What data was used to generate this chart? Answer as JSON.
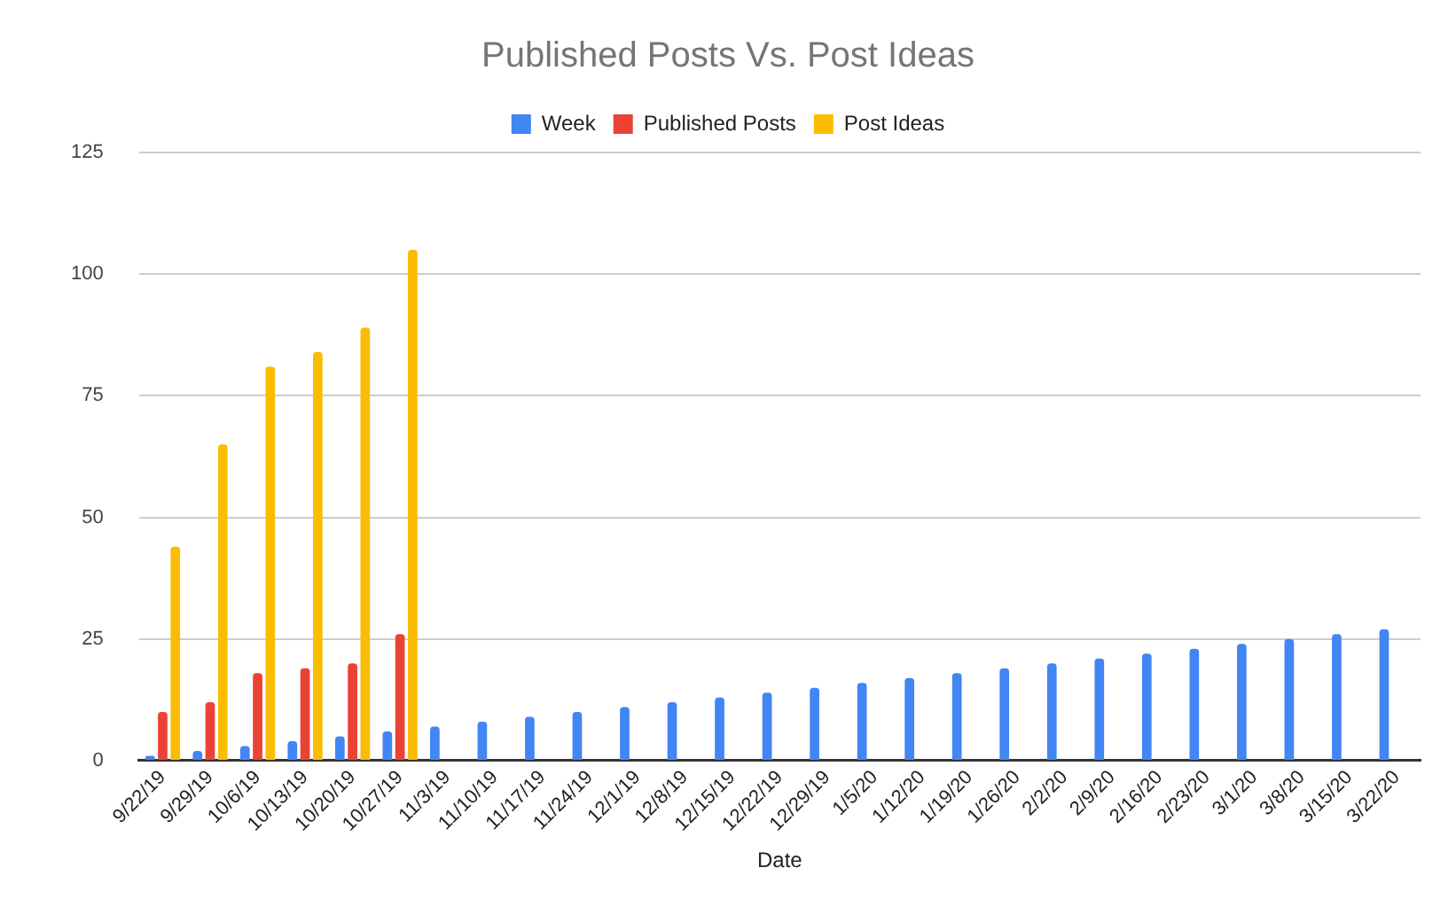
{
  "chart_data": {
    "type": "bar",
    "title": "Published Posts Vs. Post Ideas",
    "xlabel": "Date",
    "categories": [
      "9/22/19",
      "9/29/19",
      "10/6/19",
      "10/13/19",
      "10/20/19",
      "10/27/19",
      "11/3/19",
      "11/10/19",
      "11/17/19",
      "11/24/19",
      "12/1/19",
      "12/8/19",
      "12/15/19",
      "12/22/19",
      "12/29/19",
      "1/5/20",
      "1/12/20",
      "1/19/20",
      "1/26/20",
      "2/2/20",
      "2/9/20",
      "2/16/20",
      "2/23/20",
      "3/1/20",
      "3/8/20",
      "3/15/20",
      "3/22/20"
    ],
    "series": [
      {
        "name": "Week",
        "color": "#4285f4",
        "values": [
          1,
          2,
          3,
          4,
          5,
          6,
          7,
          8,
          9,
          10,
          11,
          12,
          13,
          14,
          15,
          16,
          17,
          18,
          19,
          20,
          21,
          22,
          23,
          24,
          25,
          26,
          27
        ]
      },
      {
        "name": "Published Posts",
        "color": "#ea4335",
        "values": [
          10,
          12,
          18,
          19,
          20,
          26,
          null,
          null,
          null,
          null,
          null,
          null,
          null,
          null,
          null,
          null,
          null,
          null,
          null,
          null,
          null,
          null,
          null,
          null,
          null,
          null,
          null
        ]
      },
      {
        "name": "Post Ideas",
        "color": "#fbbc04",
        "values": [
          44,
          65,
          81,
          84,
          89,
          105,
          null,
          null,
          null,
          null,
          null,
          null,
          null,
          null,
          null,
          null,
          null,
          null,
          null,
          null,
          null,
          null,
          null,
          null,
          null,
          null,
          null
        ]
      }
    ],
    "ylim": [
      0,
      125
    ],
    "yticks": [
      0,
      25,
      50,
      75,
      100,
      125
    ],
    "grid": "y",
    "legend": "top"
  }
}
